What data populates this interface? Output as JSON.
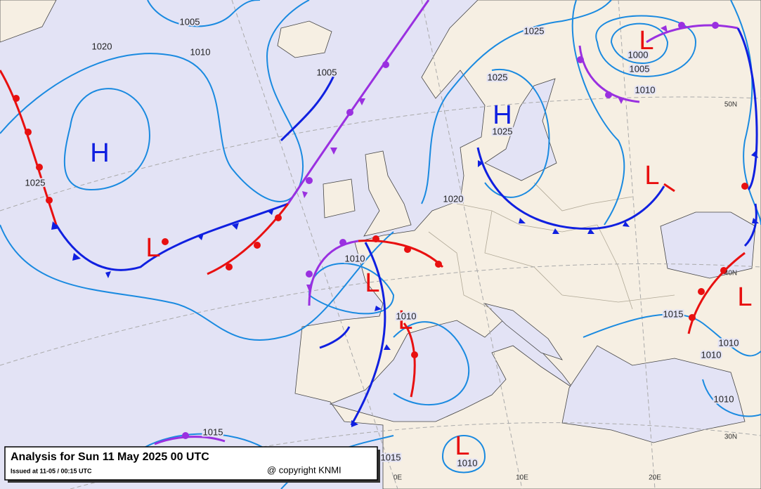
{
  "title": "Analysis for Sun 11 May 2025 00 UTC",
  "issued": "Issued at 11-05 / 00:15 UTC",
  "copyright": "@ copyright KNMI",
  "pressure_centers": [
    "H",
    "H",
    "L",
    "L",
    "L",
    "L",
    "L",
    "L",
    "L"
  ],
  "isobar_labels": [
    "1005",
    "1020",
    "1010",
    "1005",
    "1025",
    "1025",
    "1025",
    "1025",
    "1020",
    "1000",
    "1005",
    "1010",
    "1010",
    "1010",
    "1015",
    "1010",
    "1010",
    "1010",
    "1015",
    "1015",
    "1010"
  ],
  "graticule_labels": [
    "50N",
    "40N",
    "30N",
    "0E",
    "10E",
    "20E"
  ]
}
